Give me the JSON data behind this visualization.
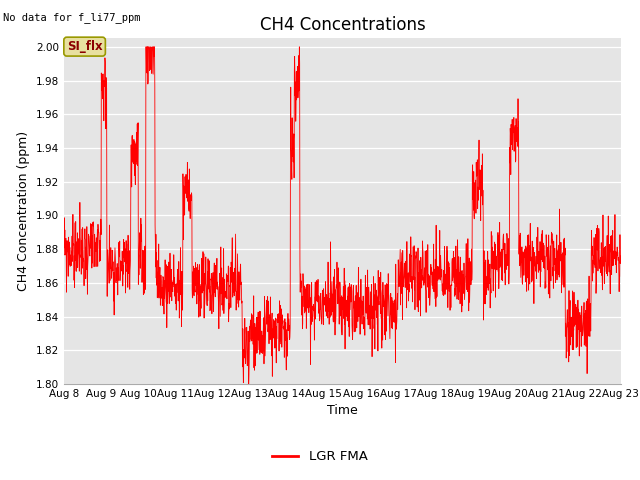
{
  "title": "CH4 Concentrations",
  "top_left_text": "No data for f_li77_ppm",
  "ylabel": "CH4 Concentration (ppm)",
  "xlabel": "Time",
  "ylim": [
    1.8,
    2.005
  ],
  "line_color": "red",
  "legend_label": "LGR FMA",
  "bg_color": "#e5e5e5",
  "annotation_text": "SI_flx",
  "annotation_bg": "#e8e0a0",
  "annotation_border": "#999900",
  "x_tick_labels": [
    "Aug 8",
    "Aug 9",
    "Aug 10",
    "Aug 11",
    "Aug 12",
    "Aug 13",
    "Aug 14",
    "Aug 15",
    "Aug 16",
    "Aug 17",
    "Aug 18",
    "Aug 19",
    "Aug 20",
    "Aug 21",
    "Aug 22",
    "Aug 23"
  ],
  "title_fontsize": 12,
  "axis_fontsize": 9,
  "tick_fontsize": 7.5
}
